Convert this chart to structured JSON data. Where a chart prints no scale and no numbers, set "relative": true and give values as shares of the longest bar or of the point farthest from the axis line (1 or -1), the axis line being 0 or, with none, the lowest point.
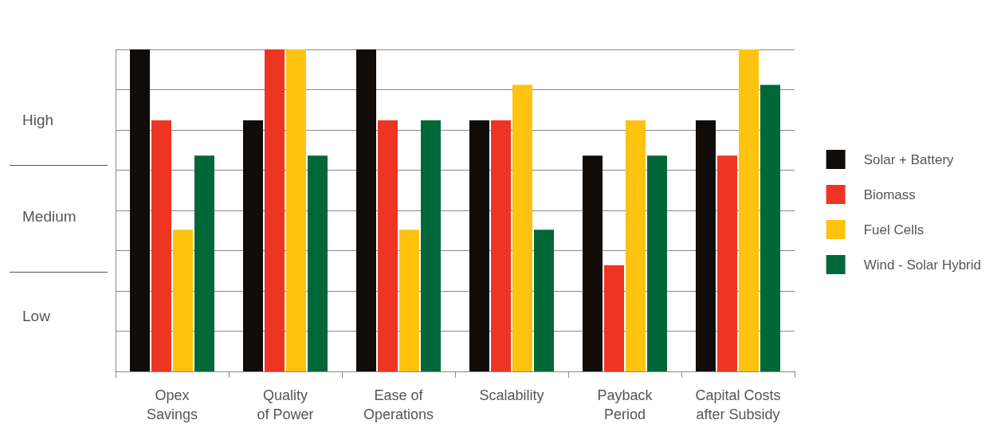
{
  "chart_data": {
    "type": "bar",
    "relative": true,
    "categories": [
      "Opex\nSavings",
      "Quality\nof Power",
      "Ease of\nOperations",
      "Scalability",
      "Payback\nPeriod",
      "Capital Costs\nafter Subsidy"
    ],
    "series": [
      {
        "name": "Solar + Battery",
        "color": "#0f0c0a",
        "values": [
          1,
          0.78,
          1,
          0.78,
          0.67,
          0.78
        ]
      },
      {
        "name": "Biomass",
        "color": "#ee3524",
        "values": [
          0.78,
          1,
          0.78,
          0.78,
          0.33,
          0.67
        ]
      },
      {
        "name": "Fuel Cells",
        "color": "#ffc20e",
        "values": [
          0.44,
          1,
          0.44,
          0.89,
          0.78,
          1
        ]
      },
      {
        "name": "Wind - Solar Hybrid",
        "color": "#006838",
        "values": [
          0.67,
          0.67,
          0.78,
          0.44,
          0.67,
          0.89
        ]
      }
    ],
    "annotations": [
      "High",
      "Medium",
      "Low"
    ],
    "grid": "y",
    "legend": "right"
  }
}
